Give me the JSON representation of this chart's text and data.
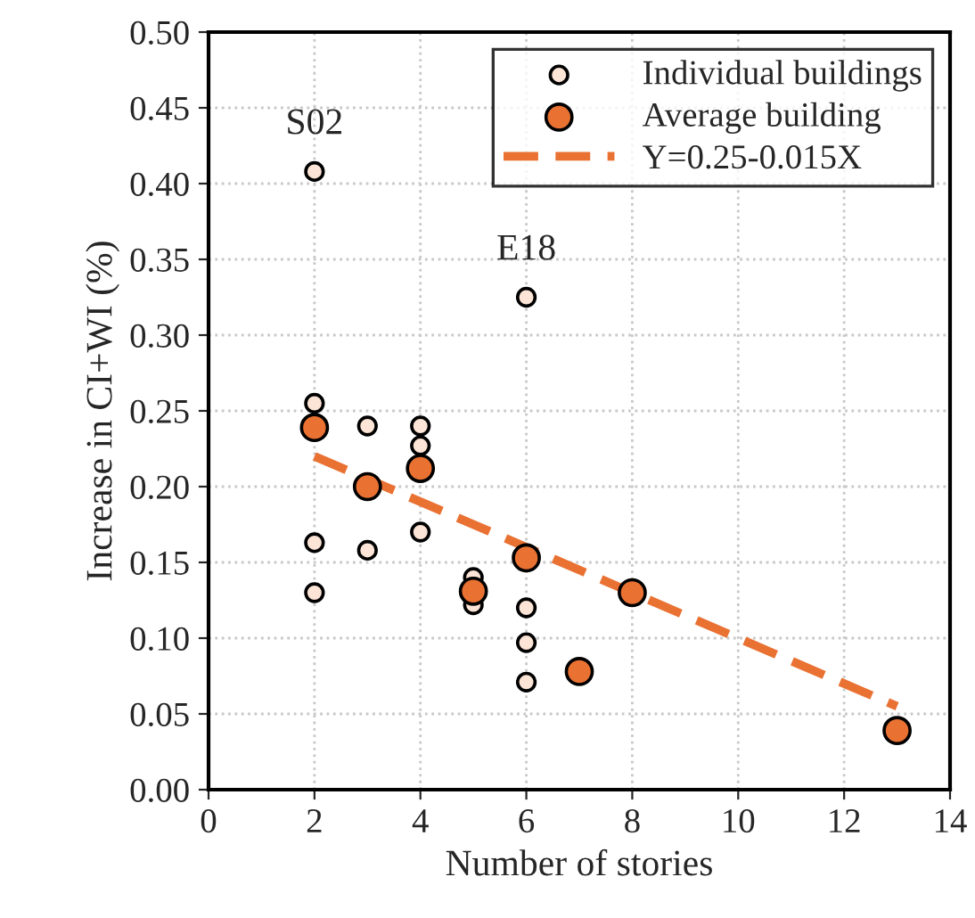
{
  "chart_data": {
    "type": "scatter",
    "xlabel": "Number of stories",
    "ylabel": "Increase in CI+WI (%)",
    "xlim": [
      0,
      14
    ],
    "xticks": [
      0,
      2,
      4,
      6,
      8,
      10,
      12,
      14
    ],
    "ylim": [
      0,
      0.5
    ],
    "yticks": [
      {
        "value": 0,
        "label": "0.00"
      },
      {
        "value": 0.05,
        "label": "0.05"
      },
      {
        "value": 0.1,
        "label": "0.10"
      },
      {
        "value": 0.15,
        "label": "0.15"
      },
      {
        "value": 0.2,
        "label": "0.20"
      },
      {
        "value": 0.25,
        "label": "0.25"
      },
      {
        "value": 0.3,
        "label": "0.30"
      },
      {
        "value": 0.35,
        "label": "0.35"
      },
      {
        "value": 0.4,
        "label": "0.40"
      },
      {
        "value": 0.45,
        "label": "0.45"
      },
      {
        "value": 0.5,
        "label": "0.50"
      }
    ],
    "grid": true,
    "legend": "top right",
    "series": [
      {
        "name": "Individual buildings",
        "marker": "circle",
        "color": "#fce4d6",
        "x": [
          2,
          2,
          2,
          2,
          3,
          3,
          4,
          4,
          4,
          5,
          5,
          6,
          6,
          6,
          6
        ],
        "values": [
          0.408,
          0.255,
          0.163,
          0.13,
          0.24,
          0.158,
          0.24,
          0.227,
          0.17,
          0.14,
          0.122,
          0.325,
          0.12,
          0.097,
          0.071
        ]
      },
      {
        "name": "Average building",
        "marker": "circle",
        "color": "#e97132",
        "x": [
          2,
          3,
          4,
          5,
          6,
          7,
          8,
          13
        ],
        "values": [
          0.239,
          0.2,
          0.212,
          0.131,
          0.153,
          0.078,
          0.13,
          0.039
        ]
      },
      {
        "name": "Y=0.25-0.015X",
        "type": "line",
        "marker": "none",
        "line_style": "dashed",
        "color": "#e97132",
        "x": [
          2,
          13
        ],
        "values": [
          0.22,
          0.055
        ]
      }
    ],
    "annotations": [
      {
        "text": "S02",
        "x": 2,
        "y": 0.408
      },
      {
        "text": "E18",
        "x": 6,
        "y": 0.325
      }
    ]
  }
}
